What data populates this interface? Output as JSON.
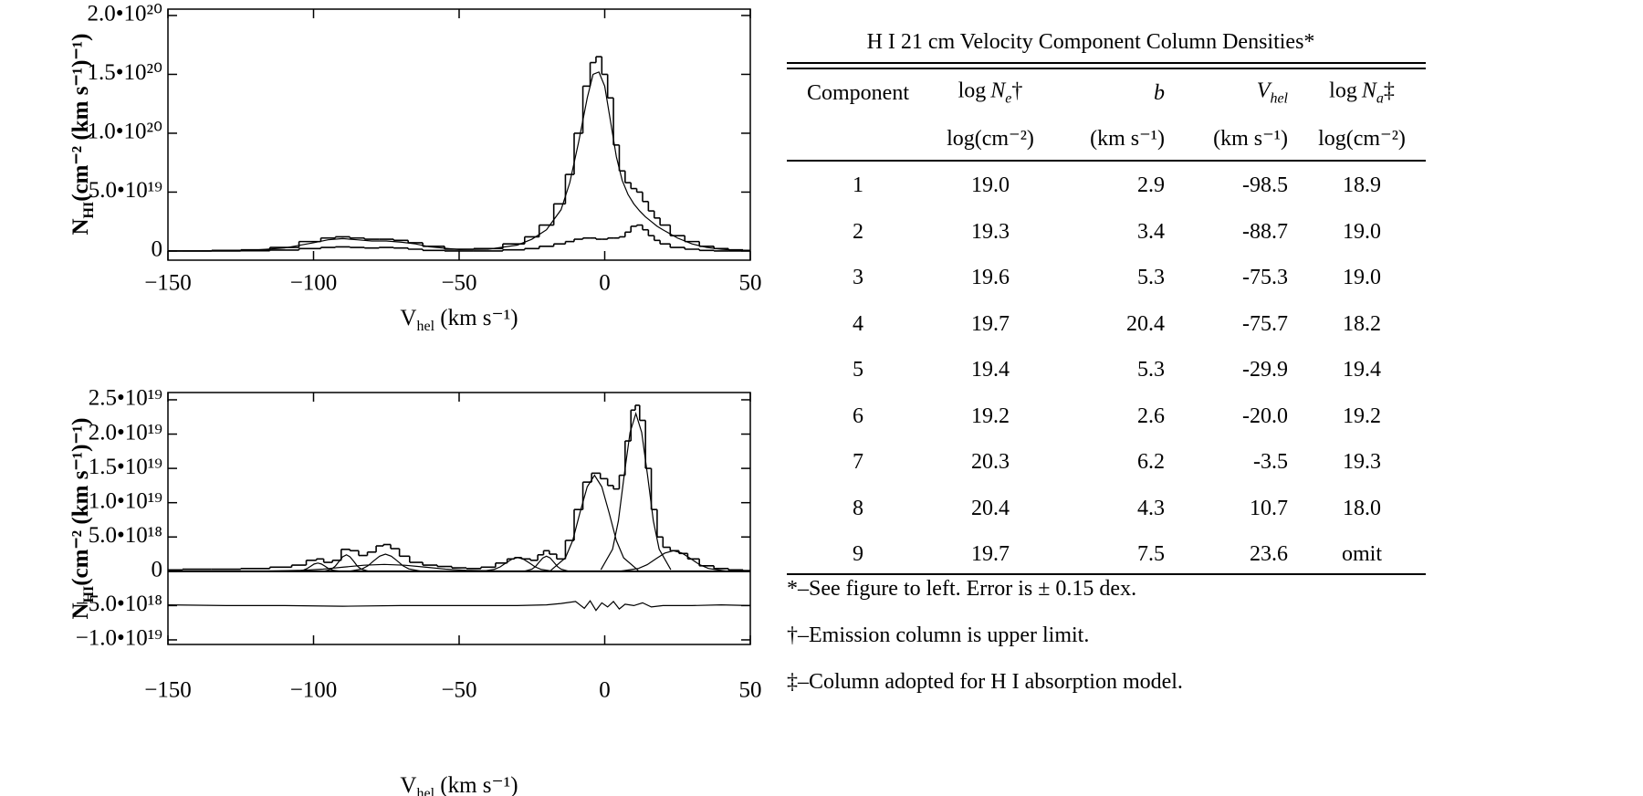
{
  "chart_data": [
    {
      "type": "line",
      "x_label": {
        "main": "V",
        "sub": "hel",
        "rest": " (km s⁻¹)"
      },
      "y_label": {
        "main": "N",
        "sub": "HI",
        "rest": "(cm⁻² (km s⁻¹)⁻¹)"
      },
      "xlim": [
        -150,
        50
      ],
      "xticks": [
        {
          "value": -150,
          "label": "−150"
        },
        {
          "value": -100,
          "label": "−100"
        },
        {
          "value": -50,
          "label": "−50"
        },
        0,
        50
      ],
      "ylim": [
        -7.8e+18,
        2.054e+20
      ],
      "yticks": [
        0,
        {
          "value": 5e+19,
          "label": "5.0•10¹⁹"
        },
        {
          "value": 1e+20,
          "label": "1.0•10²⁰"
        },
        {
          "value": 1.5e+20,
          "label": "1.5•10²⁰"
        },
        {
          "value": 2e+20,
          "label": "2.0•10²⁰"
        }
      ],
      "zero_line": false,
      "series": [
        {
          "color": "#000000",
          "style": "step",
          "x": [
            -150,
            -140,
            -130,
            -120,
            -110,
            -100,
            -95,
            -90,
            -85,
            -80,
            -75,
            -70,
            -65,
            -60,
            -50,
            -40,
            -30,
            -25,
            -20,
            -15,
            -12,
            -9,
            -6,
            -4,
            -2,
            0,
            2,
            4,
            6,
            8,
            10,
            12,
            14,
            16,
            18,
            20,
            25,
            30,
            35,
            40,
            45,
            50
          ],
          "values": [
            0,
            0,
            5e+17,
            1e+18,
            3e+18,
            8e+18,
            1.1e+19,
            1.2e+19,
            1.1e+19,
            1e+19,
            1e+19,
            9e+18,
            7e+18,
            4e+18,
            1.5e+18,
            2e+18,
            6e+18,
            1.2e+19,
            2.2e+19,
            4e+19,
            6.5e+19,
            1e+20,
            1.4e+20,
            1.6e+20,
            1.65e+20,
            1.5e+20,
            1.3e+20,
            9e+19,
            6.8e+19,
            5.8e+19,
            5.3e+19,
            5e+19,
            4.2e+19,
            3.4e+19,
            2.8e+19,
            2.2e+19,
            1.3e+19,
            8e+18,
            4e+18,
            2e+18,
            1e+18,
            5e+17
          ]
        },
        {
          "color": "#000000",
          "style": "line",
          "x": [
            -150,
            -140,
            -130,
            -120,
            -110,
            -100,
            -95,
            -90,
            -85,
            -80,
            -75,
            -70,
            -65,
            -60,
            -50,
            -40,
            -30,
            -25,
            -20,
            -15,
            -12,
            -9,
            -6,
            -4,
            -2,
            0,
            2,
            4,
            6,
            8,
            10,
            12,
            14,
            16,
            18,
            20,
            25,
            30,
            35,
            40,
            45,
            50
          ],
          "values": [
            0,
            0,
            3e+17,
            8e+17,
            2.5e+18,
            7e+18,
            9.5e+18,
            1.05e+19,
            9.5e+18,
            8.5e+18,
            8.5e+18,
            7.5e+18,
            6e+18,
            3.5e+18,
            1.2e+18,
            1.5e+18,
            5e+18,
            1e+19,
            1.8e+19,
            3.5e+19,
            5.8e+19,
            9.2e+19,
            1.3e+20,
            1.5e+20,
            1.52e+20,
            1.4e+20,
            1.1e+20,
            8e+19,
            6e+19,
            4.8e+19,
            4e+19,
            3.4e+19,
            2.9e+19,
            2.5e+19,
            2.1e+19,
            1.8e+19,
            1.1e+19,
            6e+18,
            3e+18,
            1.5e+18,
            7e+17,
            3e+17
          ]
        },
        {
          "color": "#000000",
          "style": "step",
          "x": [
            -150,
            -140,
            -130,
            -120,
            -110,
            -100,
            -95,
            -90,
            -85,
            -80,
            -75,
            -70,
            -65,
            -60,
            -50,
            -40,
            -30,
            -25,
            -20,
            -15,
            -12,
            -9,
            -6,
            -4,
            -2,
            0,
            2,
            4,
            6,
            8,
            10,
            12,
            14,
            16,
            18,
            20,
            25,
            30,
            35,
            40,
            45,
            50
          ],
          "values": [
            0,
            0,
            0,
            2e+17,
            8e+17,
            2e+18,
            3e+18,
            3.5e+18,
            3e+18,
            2.5e+18,
            3e+18,
            2.5e+18,
            1.5e+18,
            5e+17,
            0,
            0,
            1e+18,
            2e+18,
            4e+18,
            6e+18,
            8e+18,
            1e+19,
            1.1e+19,
            1.1e+19,
            1e+19,
            1e+19,
            1.1e+19,
            1.1e+19,
            1.2e+19,
            1.6e+19,
            2.1e+19,
            2.2e+19,
            1.8e+19,
            1.3e+19,
            9e+18,
            6e+18,
            3e+18,
            1.5e+18,
            5e+17,
            0,
            0,
            0
          ]
        }
      ]
    },
    {
      "type": "line",
      "x_label": {
        "main": "V",
        "sub": "hel",
        "rest": " (km s⁻¹)"
      },
      "y_label": {
        "main": "N",
        "sub": "HI",
        "rest": "(cm⁻² (km s⁻¹)⁻¹)"
      },
      "xlim": [
        -150,
        50
      ],
      "xticks": [
        {
          "value": -150,
          "label": "−150"
        },
        {
          "value": -100,
          "label": "−100"
        },
        {
          "value": -50,
          "label": "−50"
        },
        0,
        50
      ],
      "ylim": [
        -1.067e+19,
        2.606e+19
      ],
      "yticks": [
        {
          "value": -1e+19,
          "label": "−1.0•10¹⁹"
        },
        {
          "value": -5e+18,
          "label": "−5.0•10¹⁸"
        },
        0,
        {
          "value": 5e+18,
          "label": "5.0•10¹⁸"
        },
        {
          "value": 1e+19,
          "label": "1.0•10¹⁹"
        },
        {
          "value": 1.5e+19,
          "label": "1.5•10¹⁹"
        },
        {
          "value": 2e+19,
          "label": "2.0•10¹⁹"
        },
        {
          "value": 2.5e+19,
          "label": "2.5•10¹⁹"
        }
      ],
      "zero_line": true,
      "series": [
        {
          "color": "#000000",
          "style": "step",
          "x": [
            -150,
            -140,
            -130,
            -120,
            -110,
            -105,
            -100,
            -98,
            -95,
            -92,
            -89,
            -86,
            -83,
            -80,
            -77,
            -75,
            -72,
            -69,
            -65,
            -60,
            -55,
            -50,
            -45,
            -40,
            -35,
            -32,
            -30,
            -27,
            -24,
            -22,
            -20,
            -18,
            -15,
            -12,
            -9,
            -6,
            -3,
            0,
            2,
            4,
            6,
            8,
            10,
            11,
            13,
            15,
            17,
            19,
            21,
            24,
            27,
            30,
            35,
            40,
            45,
            50
          ],
          "values": [
            2e+17,
            3e+17,
            3e+17,
            4e+17,
            6e+17,
            9e+17,
            1.6e+18,
            1.8e+18,
            1.3e+18,
            1.6e+18,
            3.2e+18,
            3e+18,
            2.3e+18,
            2.8e+18,
            3.7e+18,
            3.9e+18,
            3.3e+18,
            2.2e+18,
            1.3e+18,
            9e+17,
            7e+17,
            5e+17,
            4e+17,
            6e+17,
            1.2e+18,
            1.8e+18,
            2e+18,
            1.8e+18,
            1.6e+18,
            2.4e+18,
            3e+18,
            2.5e+18,
            1.8e+18,
            4.5e+18,
            9e+18,
            1.3e+19,
            1.43e+19,
            1.35e+19,
            1.25e+19,
            1.2e+19,
            1.4e+19,
            1.9e+19,
            2.35e+19,
            2.42e+19,
            2.2e+19,
            1.5e+19,
            9e+18,
            5e+18,
            3.5e+18,
            3e+18,
            2.6e+18,
            1.8e+18,
            8e+17,
            4e+17,
            2e+17,
            1e+17
          ]
        },
        {
          "color": "#000000",
          "style": "line",
          "x": [
            -106,
            -103.5,
            -102.3,
            -101,
            -99.8,
            -98.5,
            -97.3,
            -96,
            -94.8,
            -93.5,
            -91
          ],
          "values": [
            1.2e+16,
            1.7e+17,
            3.8e+17,
            7.3e+17,
            1.06e+18,
            1.2e+18,
            1.06e+18,
            7.3e+17,
            3.8e+17,
            1.7e+17,
            1.2e+16
          ]
        },
        {
          "color": "#000000",
          "style": "line",
          "x": [
            -96.2,
            -93.7,
            -92.5,
            -91.2,
            -90,
            -88.7,
            -87.5,
            -86.2,
            -85,
            -83.7,
            -81.2
          ],
          "values": [
            2.4e+16,
            3.4e+17,
            7.7e+17,
            1.46e+18,
            2.11e+18,
            2.4e+18,
            2.11e+18,
            1.46e+18,
            7.7e+17,
            3.4e+17,
            2.4e+16
          ]
        },
        {
          "color": "#000000",
          "style": "line",
          "x": [
            -87.3,
            -83.3,
            -81.3,
            -79.3,
            -77.3,
            -75.3,
            -73.3,
            -71.3,
            -69.3,
            -67.3,
            -63.3
          ],
          "values": [
            2.5e+16,
            3.5e+17,
            8e+17,
            1.53e+18,
            2.2e+18,
            2.5e+18,
            2.2e+18,
            1.53e+18,
            8e+17,
            3.5e+17,
            2.5e+16
          ]
        },
        {
          "color": "#000000",
          "style": "line",
          "x": [
            -117.7,
            -103.7,
            -96.7,
            -89.7,
            -82.7,
            -75.7,
            -68.7,
            -61.7,
            -54.7,
            -47.7,
            -33.7
          ],
          "values": [
            1e+16,
            1.4e+17,
            3.2e+17,
            6.1e+17,
            8.8e+17,
            1e+18,
            8.8e+17,
            6.1e+17,
            3.2e+17,
            1.4e+17,
            1e+16
          ]
        },
        {
          "color": "#000000",
          "style": "line",
          "x": [
            -41.9,
            -37.9,
            -35.9,
            -33.9,
            -31.9,
            -29.9,
            -27.9,
            -25.9,
            -23.9,
            -21.9,
            -17.9
          ],
          "values": [
            2e+16,
            2.8e+17,
            6.4e+17,
            1.22e+18,
            1.76e+18,
            2e+18,
            1.76e+18,
            1.22e+18,
            6.4e+17,
            2.8e+17,
            2e+16
          ]
        },
        {
          "color": "#000000",
          "style": "line",
          "x": [
            -27.5,
            -25,
            -23.75,
            -22.5,
            -21.25,
            -20,
            -18.75,
            -17.5,
            -16.25,
            -15,
            -12.5
          ],
          "values": [
            2.2e+16,
            3.1e+17,
            7e+17,
            1.34e+18,
            1.94e+18,
            2.2e+18,
            1.94e+18,
            1.34e+18,
            7e+17,
            3.1e+17,
            2.2e+16
          ]
        },
        {
          "color": "#000000",
          "style": "line",
          "x": [
            -18.5,
            -13.5,
            -11,
            -8.5,
            -6,
            -3.5,
            -1,
            1.5,
            4,
            6.5,
            11.5
          ],
          "values": [
            1.4e+17,
            1.96e+18,
            4.48e+18,
            8.54e+18,
            1.232e+19,
            1.4e+19,
            1.232e+19,
            8.54e+18,
            4.48e+18,
            1.96e+18,
            1.4e+17
          ]
        },
        {
          "color": "#000000",
          "style": "line",
          "x": [
            -1.3,
            2.7,
            4.7,
            6.7,
            8.7,
            10.7,
            12.7,
            14.7,
            16.7,
            18.7,
            22.7
          ],
          "values": [
            2.3e+17,
            3.22e+18,
            7.36e+18,
            1.403e+19,
            2.024e+19,
            2.3e+19,
            2.024e+19,
            1.403e+19,
            7.36e+18,
            3.22e+18,
            2.3e+17
          ]
        },
        {
          "color": "#000000",
          "style": "line",
          "x": [
            5.6,
            11.6,
            14.6,
            17.6,
            20.6,
            23.6,
            26.6,
            29.6,
            32.6,
            35.6,
            41.6
          ],
          "values": [
            3e+16,
            4.2e+17,
            9.6e+17,
            1.83e+18,
            2.64e+18,
            3e+18,
            2.64e+18,
            1.83e+18,
            9.6e+17,
            4.2e+17,
            3e+16
          ]
        },
        {
          "color": "#000000",
          "style": "line",
          "x": [
            -150,
            -130,
            -110,
            -90,
            -70,
            -50,
            -30,
            -20,
            -15,
            -10,
            -7,
            -5,
            -3,
            -1,
            1,
            3,
            5,
            7,
            10,
            13,
            16,
            20,
            30,
            40,
            50
          ],
          "values": [
            -4.9e+18,
            -5e+18,
            -5e+18,
            -5.1e+18,
            -5e+18,
            -5e+18,
            -5e+18,
            -4.9e+18,
            -4.7e+18,
            -4.4e+18,
            -5.4e+18,
            -4.3e+18,
            -5.7e+18,
            -4.6e+18,
            -5.2e+18,
            -4.4e+18,
            -5.5e+18,
            -4.8e+18,
            -5e+18,
            -4.6e+18,
            -5.2e+18,
            -5e+18,
            -5e+18,
            -4.9e+18,
            -5e+18
          ]
        }
      ]
    }
  ],
  "table": {
    "title": "H I 21 cm Velocity Component Column Densities*",
    "header": [
      {
        "text": "Component"
      },
      {
        "pre": "log",
        "var": "N",
        "sub": "e",
        "post": "†"
      },
      {
        "var": "b"
      },
      {
        "var": "V",
        "sub": "hel"
      },
      {
        "pre": "log",
        "var": "N",
        "sub": "a",
        "post": "‡"
      }
    ],
    "units": [
      "log(cm⁻²)",
      "(km s⁻¹)",
      "(km s⁻¹)",
      "log(cm⁻²)"
    ],
    "rows": [
      [
        "1",
        "19.0",
        "2.9",
        "-98.5",
        "18.9"
      ],
      [
        "2",
        "19.3",
        "3.4",
        "-88.7",
        "19.0"
      ],
      [
        "3",
        "19.6",
        "5.3",
        "-75.3",
        "19.0"
      ],
      [
        "4",
        "19.7",
        "20.4",
        "-75.7",
        "18.2"
      ],
      [
        "5",
        "19.4",
        "5.3",
        "-29.9",
        "19.4"
      ],
      [
        "6",
        "19.2",
        "2.6",
        "-20.0",
        "19.2"
      ],
      [
        "7",
        "20.3",
        "6.2",
        "-3.5",
        "19.3"
      ],
      [
        "8",
        "20.4",
        "4.3",
        "10.7",
        "18.0"
      ],
      [
        "9",
        "19.7",
        "7.5",
        "23.6",
        "omit"
      ]
    ],
    "notes": [
      "*–See figure to left. Error is ± 0.15 dex.",
      "†–Emission column is upper limit.",
      "‡–Column adopted for H I absorption model."
    ]
  }
}
